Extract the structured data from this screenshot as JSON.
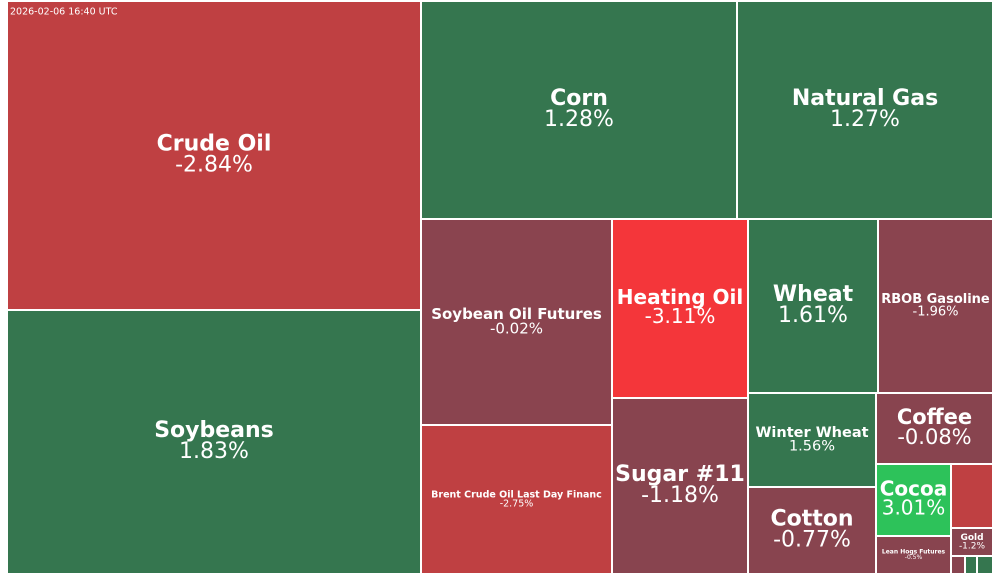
{
  "chart_data": {
    "type": "treemap",
    "subtitle": "2026-02-06 16:40 UTC",
    "categories": [
      "Crude Oil",
      "Soybeans",
      "Corn",
      "Natural Gas",
      "Soybean Oil Futures",
      "Brent Crude Oil Last Day Financ",
      "Heating Oil",
      "Sugar #11",
      "Wheat",
      "RBOB Gasoline",
      "Winter Wheat",
      "Cotton",
      "Coffee",
      "Cocoa",
      "Lean Hogs Futures",
      "Gold"
    ],
    "values": [
      -2.84,
      1.83,
      1.28,
      1.27,
      -0.02,
      -2.75,
      -3.11,
      -1.18,
      1.61,
      -1.96,
      1.56,
      -0.77,
      -0.08,
      3.01,
      -0.5,
      -1.2
    ],
    "value_labels": [
      "-2.84%",
      "1.83%",
      "1.28%",
      "1.27%",
      "-0.02%",
      "-2.75%",
      "-3.11%",
      "-1.18%",
      "1.61%",
      "-1.96%",
      "1.56%",
      "-0.77%",
      "-0.08%",
      "3.01%",
      "-0.5%",
      "-1.2%"
    ],
    "colors": [
      "#bf4042",
      "#35764f",
      "#35764f",
      "#35764f",
      "#8a444f",
      "#bf4042",
      "#f4363a",
      "#88444f",
      "#35764f",
      "#8a444f",
      "#35764f",
      "#88444f",
      "#88444f",
      "#2dc25a",
      "#88444f",
      "#88444f"
    ]
  }
}
